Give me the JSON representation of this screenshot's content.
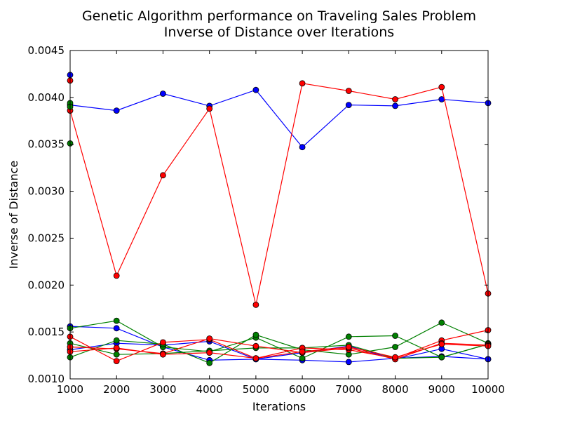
{
  "chart_data": {
    "type": "line",
    "title": "Genetic Algorithm performance on Traveling Sales Problem",
    "subtitle": "Inverse of Distance over Iterations",
    "xlabel": "Iterations",
    "ylabel": "Inverse of Distance",
    "xlim": [
      1000,
      10000
    ],
    "ylim": [
      0.001,
      0.0045
    ],
    "x_ticks": [
      "1000",
      "2000",
      "3000",
      "4000",
      "5000",
      "6000",
      "7000",
      "8000",
      "9000",
      "10000"
    ],
    "y_ticks": [
      "0.0010",
      "0.0015",
      "0.0020",
      "0.0025",
      "0.0030",
      "0.0035",
      "0.0040",
      "0.0045"
    ],
    "grid": false,
    "x": [
      1000,
      2000,
      3000,
      4000,
      5000,
      6000,
      7000,
      8000,
      9000,
      10000
    ],
    "series": [
      {
        "color": "#0000ff",
        "values": [
          0.00392,
          0.00386,
          0.00404,
          0.00391,
          0.00408,
          0.00347,
          0.00392,
          0.00391,
          0.00398,
          0.00394
        ]
      },
      {
        "color": "#ff0000",
        "values": [
          0.00386,
          0.0021,
          0.00317,
          0.00388,
          0.00179,
          0.00415,
          0.00407,
          0.00398,
          0.00411,
          0.00191
        ]
      },
      {
        "color": "#0000ff",
        "values": [
          0.00156,
          0.00154,
          0.00134,
          0.0012,
          0.00121,
          0.0012,
          0.00118,
          0.00122,
          0.00124,
          0.00121
        ]
      },
      {
        "color": "#0000ff",
        "values": [
          0.00131,
          0.00138,
          0.00136,
          0.0014,
          0.00121,
          0.00128,
          0.00135,
          0.00121,
          0.00132,
          0.00121
        ]
      },
      {
        "color": "#008000",
        "values": [
          0.00154,
          0.00162,
          0.00134,
          0.00129,
          0.00144,
          0.00122,
          0.00145,
          0.00146,
          0.00123,
          0.00137
        ]
      },
      {
        "color": "#008000",
        "values": [
          0.00123,
          0.00141,
          0.00137,
          0.00117,
          0.00147,
          0.00131,
          0.00126,
          0.00134,
          0.0016,
          0.00138
        ]
      },
      {
        "color": "#008000",
        "values": [
          0.00138,
          0.00126,
          0.00127,
          0.0013,
          0.00133,
          0.00133,
          0.00136,
          0.00122,
          0.00123,
          0.00137
        ]
      },
      {
        "color": "#ff0000",
        "values": [
          0.00145,
          0.00119,
          0.00139,
          0.00142,
          0.00122,
          0.00133,
          0.00131,
          0.00122,
          0.00141,
          0.00152
        ]
      },
      {
        "color": "#ff0000",
        "values": [
          0.00134,
          0.00132,
          0.00127,
          0.00143,
          0.00135,
          0.00128,
          0.00133,
          0.00121,
          0.00138,
          0.00136
        ]
      },
      {
        "color": "#ff0000",
        "values": [
          0.00129,
          0.00133,
          0.00126,
          0.00128,
          0.00122,
          0.00129,
          0.00134,
          0.00123,
          0.00137,
          0.00135
        ]
      }
    ],
    "extra_points": [
      {
        "x": 1000,
        "y": 0.00424,
        "color": "#0000ff"
      },
      {
        "x": 1000,
        "y": 0.00418,
        "color": "#ff0000"
      },
      {
        "x": 1000,
        "y": 0.00394,
        "color": "#008000"
      },
      {
        "x": 1000,
        "y": 0.0039,
        "color": "#008000"
      },
      {
        "x": 1000,
        "y": 0.00351,
        "color": "#008000"
      }
    ]
  }
}
